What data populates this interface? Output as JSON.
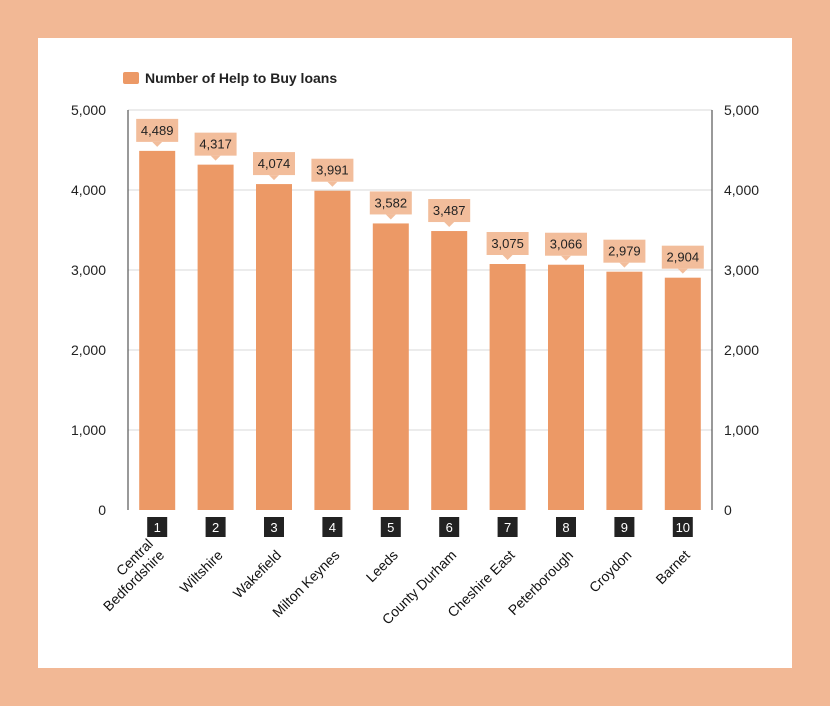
{
  "colors": {
    "background": "#F2B895",
    "bar": "#EC9966",
    "label_box": "#F2BD9B",
    "rank_box": "#222222",
    "grid": "#d9d9d9"
  },
  "chart_data": {
    "type": "bar",
    "legend": "Number of Help to Buy loans",
    "legend_position": "top-left",
    "ranks": [
      "1",
      "2",
      "3",
      "4",
      "5",
      "6",
      "7",
      "8",
      "9",
      "10"
    ],
    "categories": [
      "Central Bedfordshire",
      "Wiltshire",
      "Wakefield",
      "Milton Keynes",
      "Leeds",
      "County Durham",
      "Cheshire East",
      "Peterborough",
      "Croydon",
      "Barnet"
    ],
    "category_lines": [
      [
        "Central",
        "Bedfordshire"
      ],
      [
        "Wiltshire"
      ],
      [
        "Wakefield"
      ],
      [
        "Milton Keynes"
      ],
      [
        "Leeds"
      ],
      [
        "County Durham"
      ],
      [
        "Cheshire East"
      ],
      [
        "Peterborough"
      ],
      [
        "Croydon"
      ],
      [
        "Barnet"
      ]
    ],
    "values": [
      4489,
      4317,
      4074,
      3991,
      3582,
      3487,
      3075,
      3066,
      2979,
      2904
    ],
    "value_labels": [
      "4,489",
      "4,317",
      "4,074",
      "3,991",
      "3,582",
      "3,487",
      "3,075",
      "3,066",
      "2,979",
      "2,904"
    ],
    "ylim": [
      0,
      5000
    ],
    "yticks": [
      0,
      1000,
      2000,
      3000,
      4000,
      5000
    ],
    "ytick_labels": [
      "0",
      "1,000",
      "2,000",
      "3,000",
      "4,000",
      "5,000"
    ],
    "secondary_axis": true,
    "grid": true
  }
}
